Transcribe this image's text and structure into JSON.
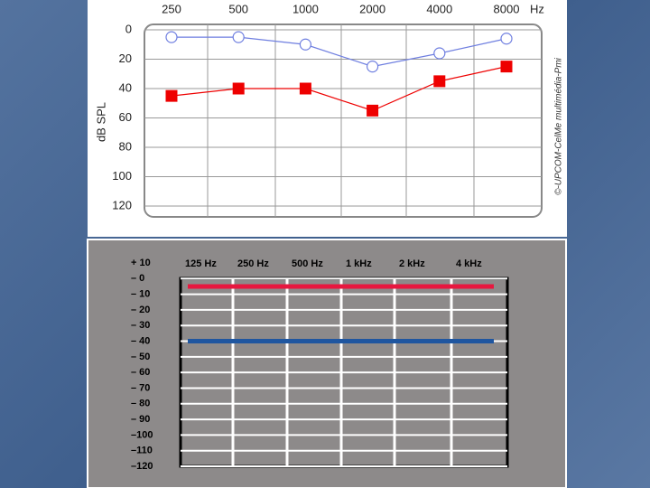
{
  "chart_data": [
    {
      "type": "line",
      "categories": [
        "250",
        "500",
        "1000",
        "2000",
        "4000",
        "8000"
      ],
      "x_label": "Hz",
      "y_label": "dB SPL",
      "annotation": "©-UPCOM-CelMe multimédia-Pmi",
      "ylim": [
        120,
        0
      ],
      "yticks": [
        0,
        20,
        40,
        60,
        80,
        100,
        120
      ],
      "grid": true,
      "series": [
        {
          "color": "#6f7fe0",
          "marker": "circle",
          "values": [
            5,
            5,
            10,
            25,
            16,
            6
          ]
        },
        {
          "color": "#ee0000",
          "marker": "square",
          "values": [
            45,
            40,
            40,
            55,
            35,
            25
          ]
        }
      ]
    },
    {
      "type": "line",
      "categories": [
        "125 Hz",
        "250 Hz",
        "500 Hz",
        "1 kHz",
        "2 kHz",
        "4 kHz"
      ],
      "ylim": [
        -120,
        10
      ],
      "yticks": [
        {
          "value": 10,
          "label": "+ 10"
        },
        {
          "value": 0,
          "label": "– 0"
        },
        {
          "value": -10,
          "label": "– 10"
        },
        {
          "value": -20,
          "label": "– 20"
        },
        {
          "value": -30,
          "label": "– 30"
        },
        {
          "value": -40,
          "label": "– 40"
        },
        {
          "value": -50,
          "label": "– 50"
        },
        {
          "value": -60,
          "label": "– 60"
        },
        {
          "value": -70,
          "label": "– 70"
        },
        {
          "value": -80,
          "label": "– 80"
        },
        {
          "value": -90,
          "label": "– 90"
        },
        {
          "value": -100,
          "label": "–100"
        },
        {
          "value": -110,
          "label": "–110"
        },
        {
          "value": -120,
          "label": "–120"
        }
      ],
      "grid": true,
      "series": [
        {
          "color": "#e8173f",
          "marker": "none",
          "values": [
            -5,
            -5,
            -5,
            -5,
            -5,
            -5
          ]
        },
        {
          "color": "#1f56a0",
          "marker": "none",
          "values": [
            -40,
            -40,
            -40,
            -40,
            -40,
            -40
          ]
        }
      ]
    }
  ]
}
